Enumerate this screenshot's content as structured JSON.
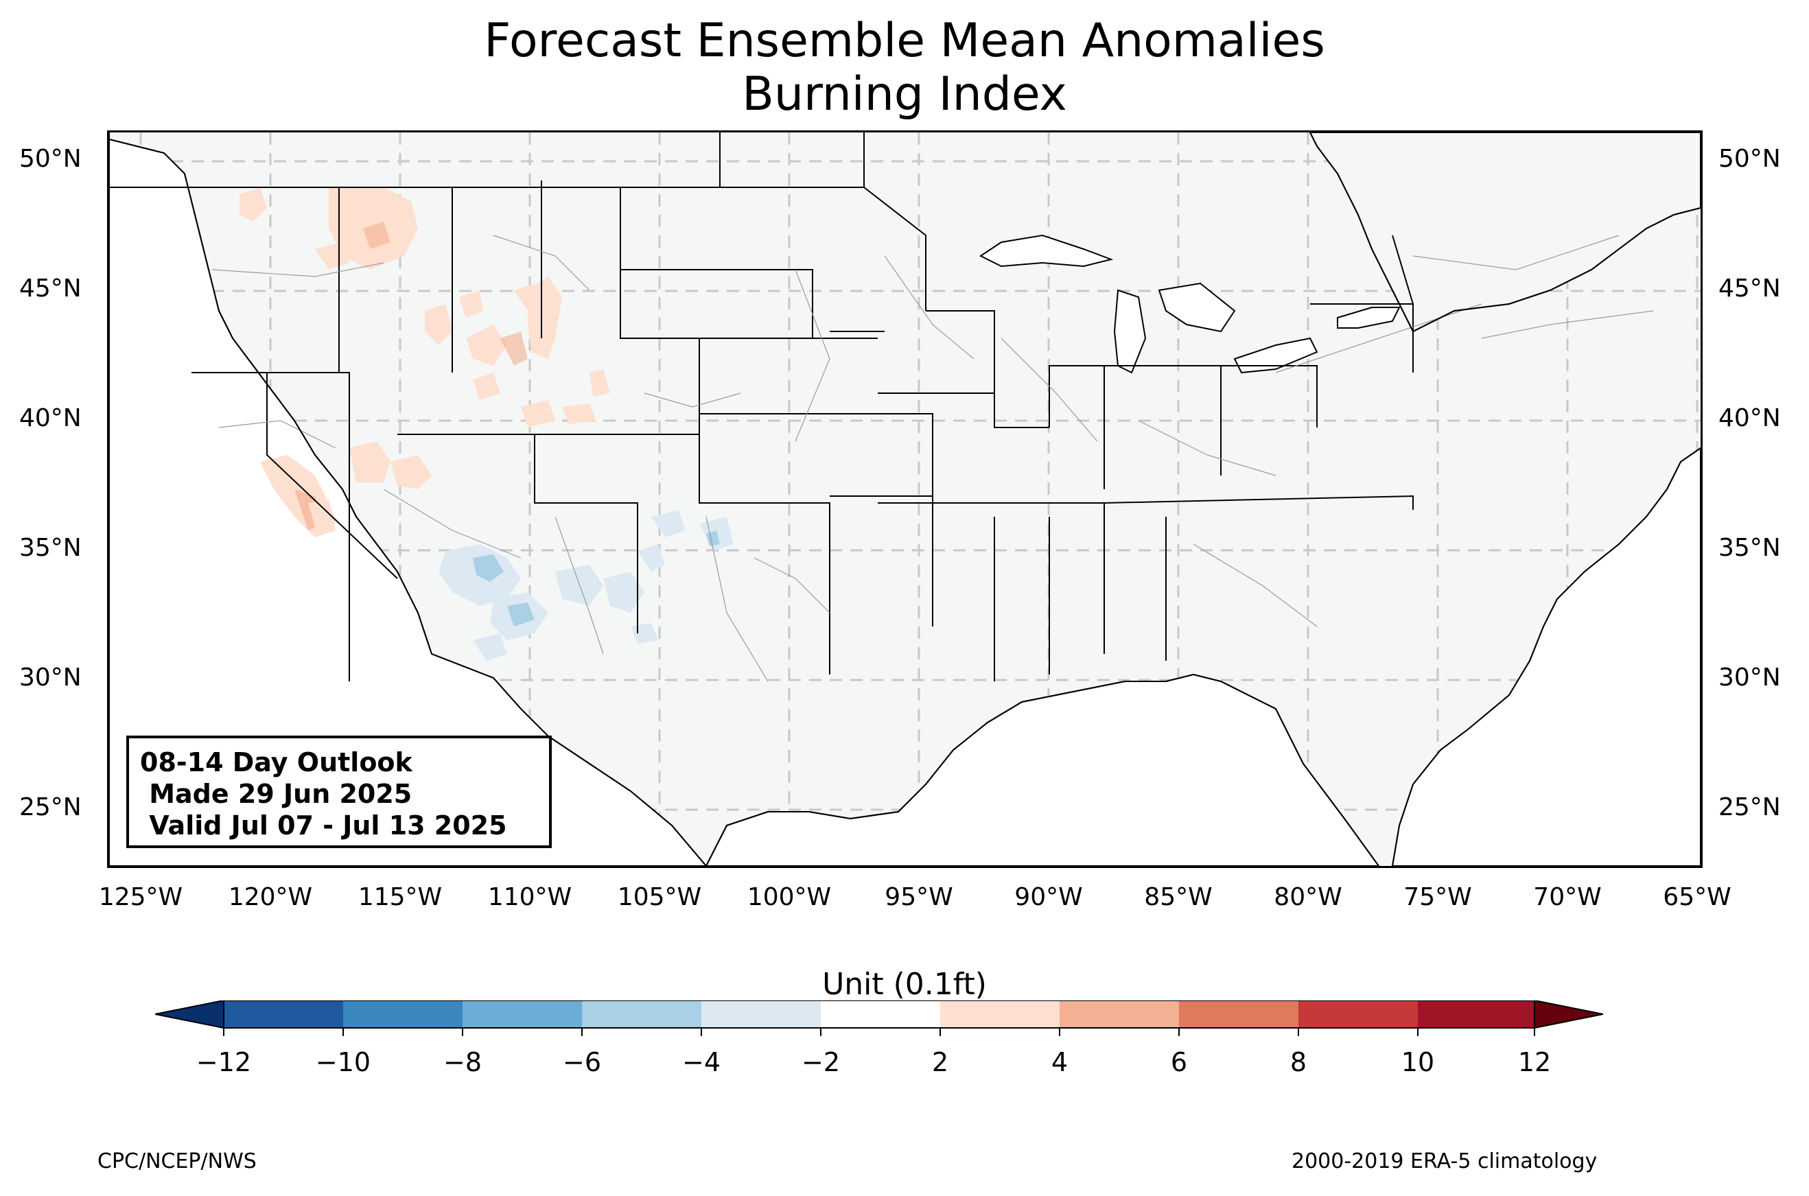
{
  "title": {
    "line1": "Forecast Ensemble Mean Anomalies",
    "line2": "Burning Index"
  },
  "map": {
    "lat_ticks": [
      "50°N",
      "45°N",
      "40°N",
      "35°N",
      "30°N",
      "25°N"
    ],
    "lon_ticks": [
      "125°W",
      "120°W",
      "115°W",
      "110°W",
      "105°W",
      "100°W",
      "95°W",
      "90°W",
      "85°W",
      "80°W",
      "75°W",
      "70°W",
      "65°W"
    ],
    "land_color": "#f5f7f6",
    "anomaly_regions": [
      {
        "area": "Northern Rockies / Idaho / Montana",
        "sign": "positive",
        "range": "2 to 4"
      },
      {
        "area": "Wyoming / Northern Utah",
        "sign": "positive",
        "range": "2 to 4"
      },
      {
        "area": "Central California / Nevada border",
        "sign": "positive",
        "range": "2 to 6"
      },
      {
        "area": "Arizona / New Mexico",
        "sign": "negative",
        "range": "-2 to -6"
      }
    ]
  },
  "outlook": {
    "line1": "08-14 Day Outlook",
    "line2": " Made 29 Jun 2025",
    "line3": " Valid Jul 07 - Jul 13 2025"
  },
  "colorbar": {
    "title": "Unit (0.1ft)",
    "ticks": [
      "−12",
      "−10",
      "−8",
      "−6",
      "−4",
      "−2",
      "2",
      "4",
      "6",
      "8",
      "10",
      "12"
    ],
    "colors": [
      "#08306b",
      "#1f5a9e",
      "#3a86bf",
      "#6aaed6",
      "#a9d0e5",
      "#dce9f2",
      "#ffffff",
      "#fde0d0",
      "#f4b093",
      "#e07a5f",
      "#c6383a",
      "#a11326",
      "#67000d"
    ]
  },
  "footer": {
    "left": "CPC/NCEP/NWS",
    "right": "2000-2019 ERA-5 climatology"
  }
}
